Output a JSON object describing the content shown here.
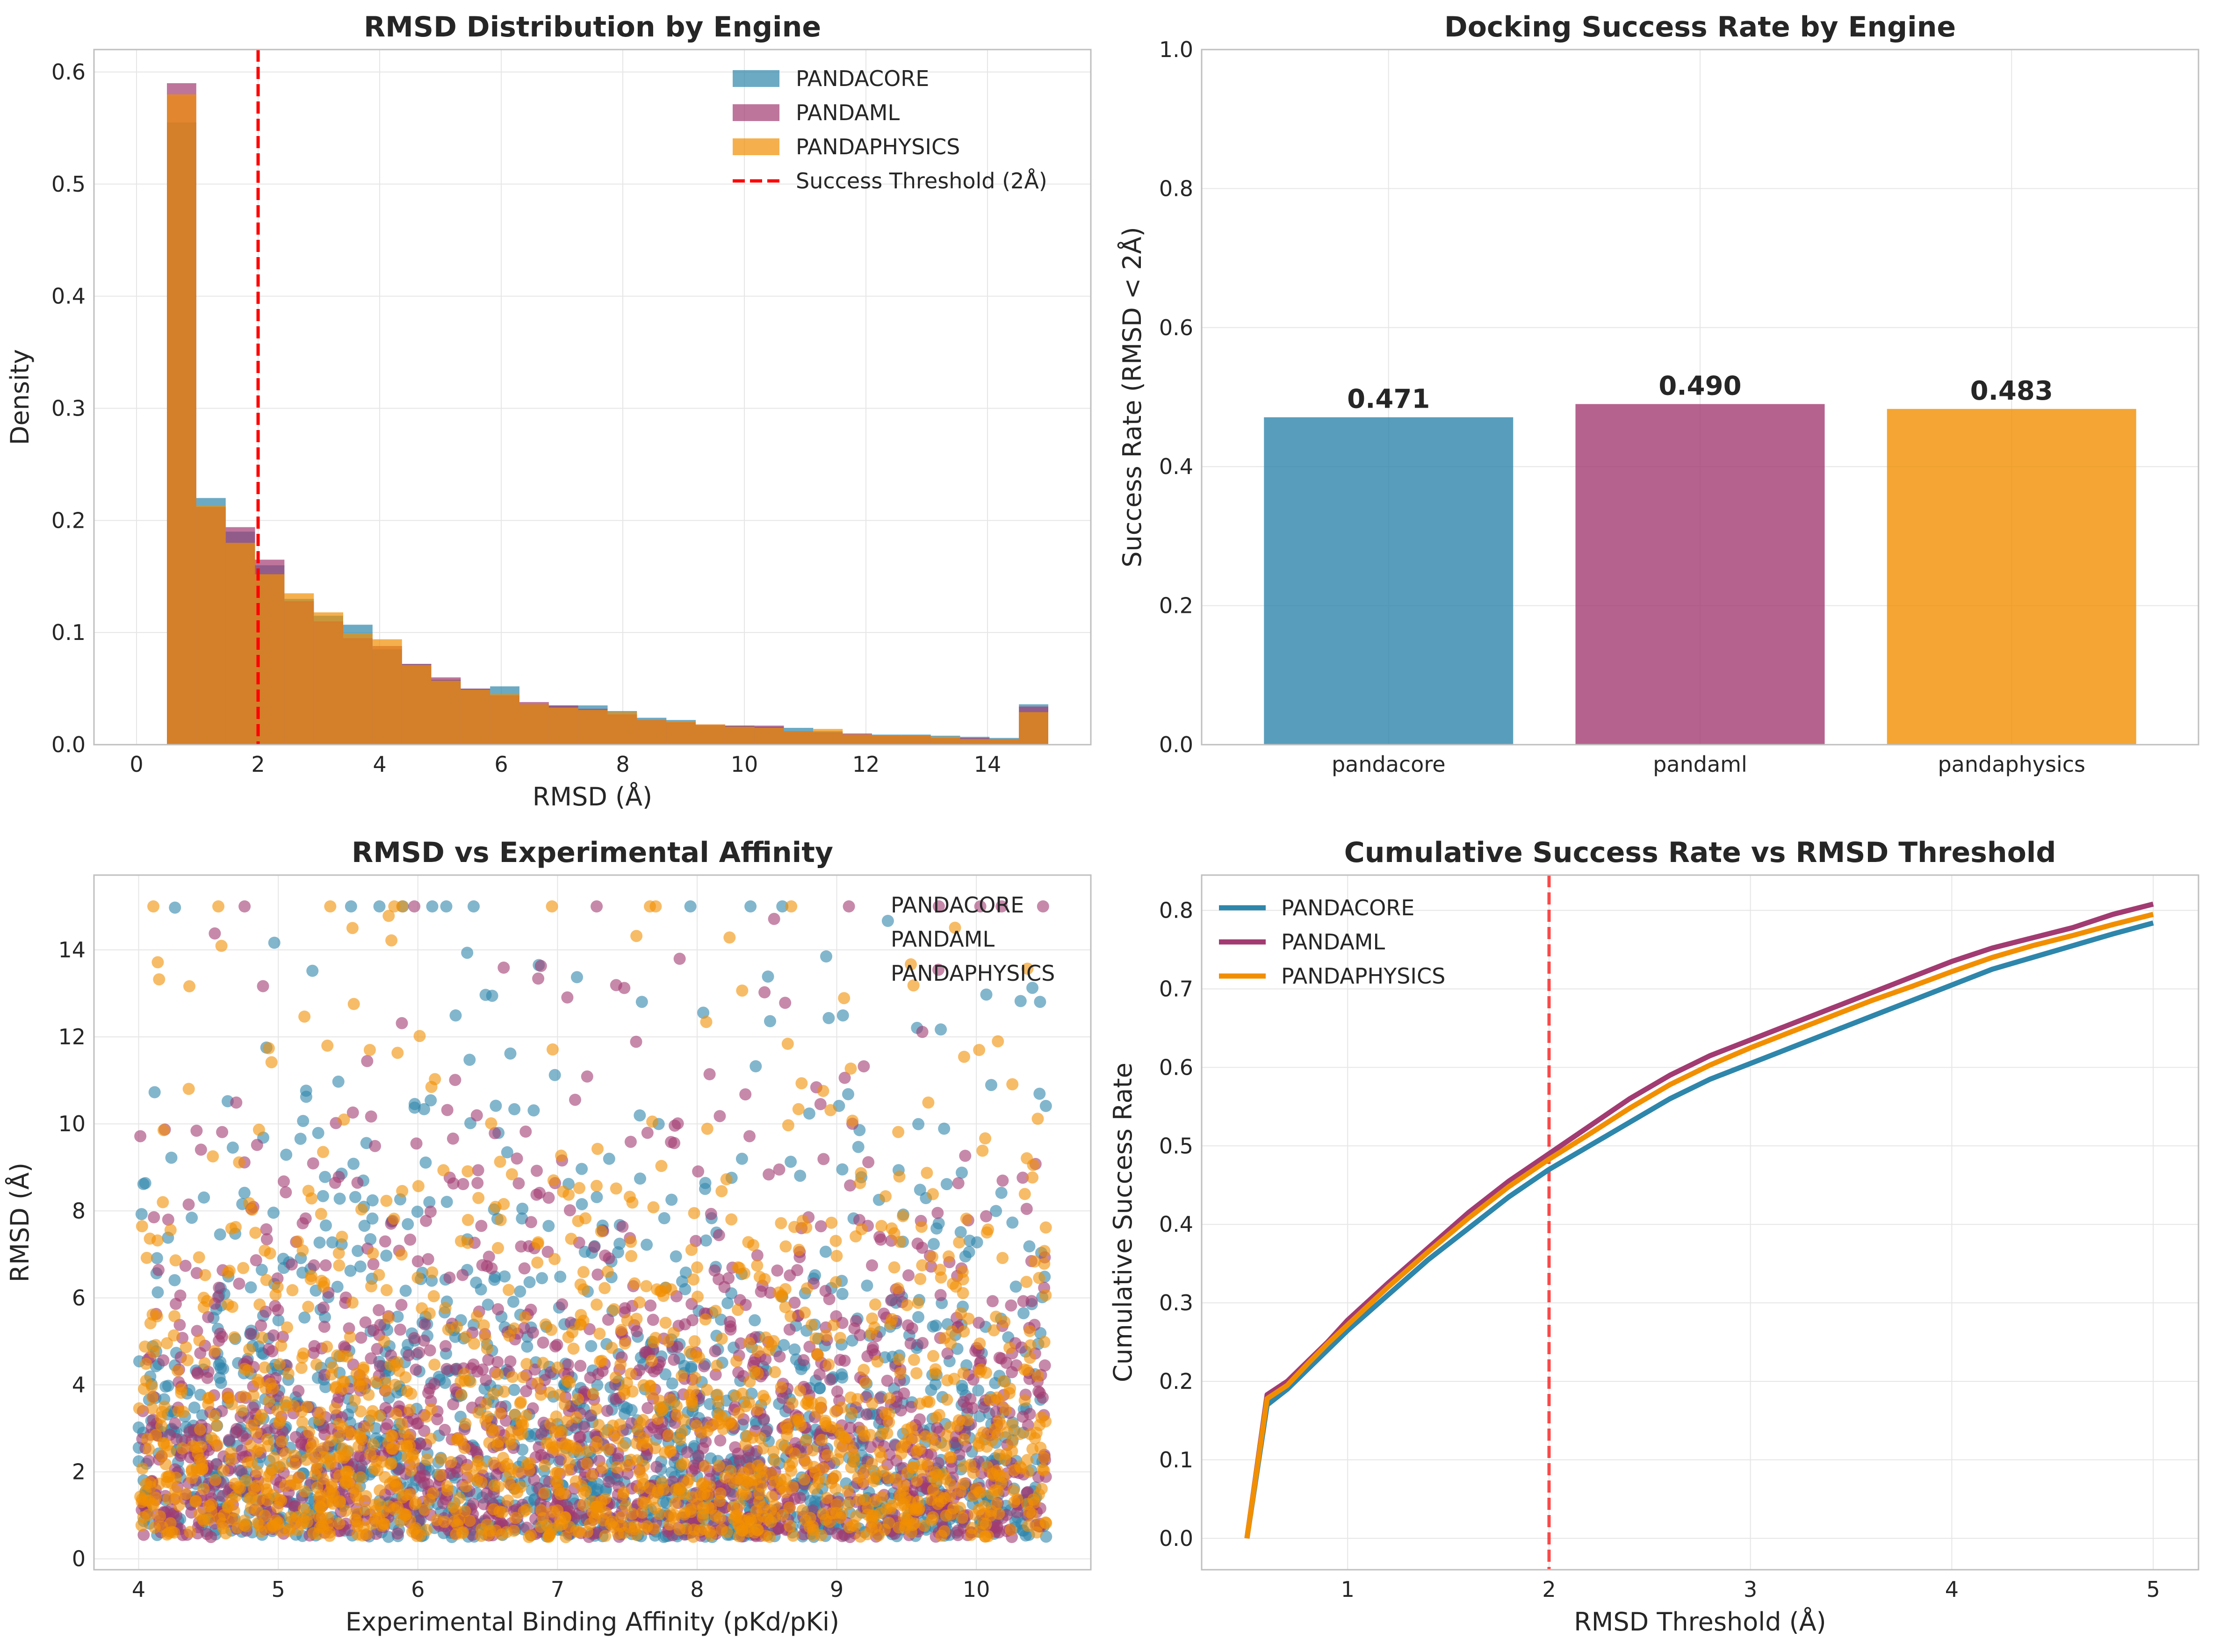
{
  "colors": {
    "pandacore": "#2E86AB",
    "pandaml": "#A23B72",
    "pandaphysics": "#F18F01",
    "threshold": "#ff0000"
  },
  "chart_data": [
    {
      "id": "hist",
      "type": "histogram",
      "title": "RMSD Distribution by Engine",
      "xlabel": "RMSD (Å)",
      "ylabel": "Density",
      "xlim": [
        -0.7,
        15.7
      ],
      "ylim": [
        0,
        0.62
      ],
      "xticks": [
        0,
        2,
        4,
        6,
        8,
        10,
        12,
        14
      ],
      "yticks": [
        0.0,
        0.1,
        0.2,
        0.3,
        0.4,
        0.5,
        0.6
      ],
      "bin_edges": [
        0.5,
        0.983,
        1.467,
        1.95,
        2.433,
        2.917,
        3.4,
        3.883,
        4.367,
        4.85,
        5.333,
        5.817,
        6.3,
        6.783,
        7.267,
        7.75,
        8.233,
        8.717,
        9.2,
        9.683,
        10.167,
        10.65,
        11.133,
        11.617,
        12.1,
        12.583,
        13.067,
        13.55,
        14.033,
        14.517,
        15.0
      ],
      "series": [
        {
          "name": "PANDACORE",
          "key": "pandacore",
          "values": [
            0.555,
            0.22,
            0.19,
            0.16,
            0.13,
            0.115,
            0.107,
            0.085,
            0.072,
            0.058,
            0.05,
            0.052,
            0.036,
            0.035,
            0.035,
            0.03,
            0.024,
            0.022,
            0.017,
            0.017,
            0.016,
            0.015,
            0.012,
            0.009,
            0.009,
            0.009,
            0.008,
            0.007,
            0.006,
            0.036
          ]
        },
        {
          "name": "PANDAML",
          "key": "pandaml",
          "values": [
            0.59,
            0.212,
            0.194,
            0.165,
            0.128,
            0.11,
            0.095,
            0.088,
            0.072,
            0.06,
            0.05,
            0.044,
            0.038,
            0.035,
            0.032,
            0.027,
            0.022,
            0.02,
            0.018,
            0.017,
            0.017,
            0.012,
            0.011,
            0.01,
            0.008,
            0.008,
            0.006,
            0.006,
            0.005,
            0.034
          ]
        },
        {
          "name": "PANDAPHYSICS",
          "key": "pandaphysics",
          "values": [
            0.58,
            0.213,
            0.18,
            0.152,
            0.135,
            0.118,
            0.099,
            0.094,
            0.071,
            0.057,
            0.049,
            0.045,
            0.036,
            0.033,
            0.031,
            0.029,
            0.022,
            0.021,
            0.018,
            0.016,
            0.015,
            0.012,
            0.014,
            0.009,
            0.008,
            0.008,
            0.007,
            0.005,
            0.005,
            0.029
          ]
        }
      ],
      "threshold": {
        "x": 2,
        "label": "Success Threshold (2Å)"
      },
      "legend": "top-right"
    },
    {
      "id": "bar",
      "type": "bar",
      "title": "Docking Success Rate by Engine",
      "xlabel": "",
      "ylabel": "Success Rate (RMSD < 2Å)",
      "categories": [
        "pandacore",
        "pandaml",
        "pandaphysics"
      ],
      "values": [
        0.471,
        0.49,
        0.483
      ],
      "value_labels": [
        "0.471",
        "0.490",
        "0.483"
      ],
      "ylim": [
        0,
        1.0
      ],
      "yticks": [
        0.0,
        0.2,
        0.4,
        0.6,
        0.8,
        1.0
      ]
    },
    {
      "id": "scatter",
      "type": "scatter",
      "title": "RMSD vs Experimental Affinity",
      "xlabel": "Experimental Binding Affinity (pKd/pKi)",
      "ylabel": "RMSD (Å)",
      "xlim": [
        3.68,
        10.82
      ],
      "ylim": [
        -0.25,
        15.72
      ],
      "xticks": [
        4,
        5,
        6,
        7,
        8,
        9,
        10
      ],
      "yticks": [
        0,
        2,
        4,
        6,
        8,
        10,
        12,
        14
      ],
      "series": [
        {
          "name": "PANDACORE",
          "key": "pandacore"
        },
        {
          "name": "PANDAML",
          "key": "pandaml"
        },
        {
          "name": "PANDAPHYSICS",
          "key": "pandaphysics"
        }
      ],
      "x_range": [
        4.0,
        10.5
      ],
      "y_range": [
        0.5,
        15.0
      ],
      "legend": "top-right"
    },
    {
      "id": "cumulative",
      "type": "line",
      "title": "Cumulative Success Rate vs RMSD Threshold",
      "xlabel": "RMSD Threshold (Å)",
      "ylabel": "Cumulative Success Rate",
      "xlim": [
        0.275,
        5.225
      ],
      "ylim": [
        -0.04,
        0.845
      ],
      "xticks": [
        1,
        2,
        3,
        4,
        5
      ],
      "yticks": [
        0.0,
        0.1,
        0.2,
        0.3,
        0.4,
        0.5,
        0.6,
        0.7,
        0.8
      ],
      "x": [
        0.5,
        0.6,
        0.7,
        0.8,
        0.9,
        1.0,
        1.2,
        1.4,
        1.6,
        1.8,
        2.0,
        2.2,
        2.4,
        2.6,
        2.8,
        3.0,
        3.2,
        3.4,
        3.6,
        3.8,
        4.0,
        4.2,
        4.4,
        4.6,
        4.8,
        5.0
      ],
      "series": [
        {
          "name": "PANDACORE",
          "key": "pandacore",
          "values": [
            0.0,
            0.17,
            0.19,
            0.215,
            0.24,
            0.265,
            0.31,
            0.355,
            0.395,
            0.435,
            0.47,
            0.5,
            0.53,
            0.56,
            0.585,
            0.605,
            0.625,
            0.645,
            0.665,
            0.685,
            0.705,
            0.725,
            0.74,
            0.755,
            0.77,
            0.784
          ]
        },
        {
          "name": "PANDAML",
          "key": "pandaml",
          "values": [
            0.0,
            0.183,
            0.2,
            0.225,
            0.25,
            0.278,
            0.325,
            0.37,
            0.415,
            0.455,
            0.49,
            0.525,
            0.56,
            0.59,
            0.615,
            0.635,
            0.655,
            0.675,
            0.695,
            0.715,
            0.735,
            0.752,
            0.765,
            0.778,
            0.795,
            0.808
          ]
        },
        {
          "name": "PANDAPHYSICS",
          "key": "pandaphysics",
          "values": [
            0.0,
            0.178,
            0.195,
            0.222,
            0.248,
            0.272,
            0.32,
            0.365,
            0.408,
            0.448,
            0.483,
            0.515,
            0.548,
            0.578,
            0.603,
            0.625,
            0.645,
            0.665,
            0.685,
            0.703,
            0.722,
            0.74,
            0.755,
            0.768,
            0.782,
            0.795
          ]
        }
      ],
      "threshold": {
        "x": 2
      },
      "legend": "top-left"
    }
  ]
}
